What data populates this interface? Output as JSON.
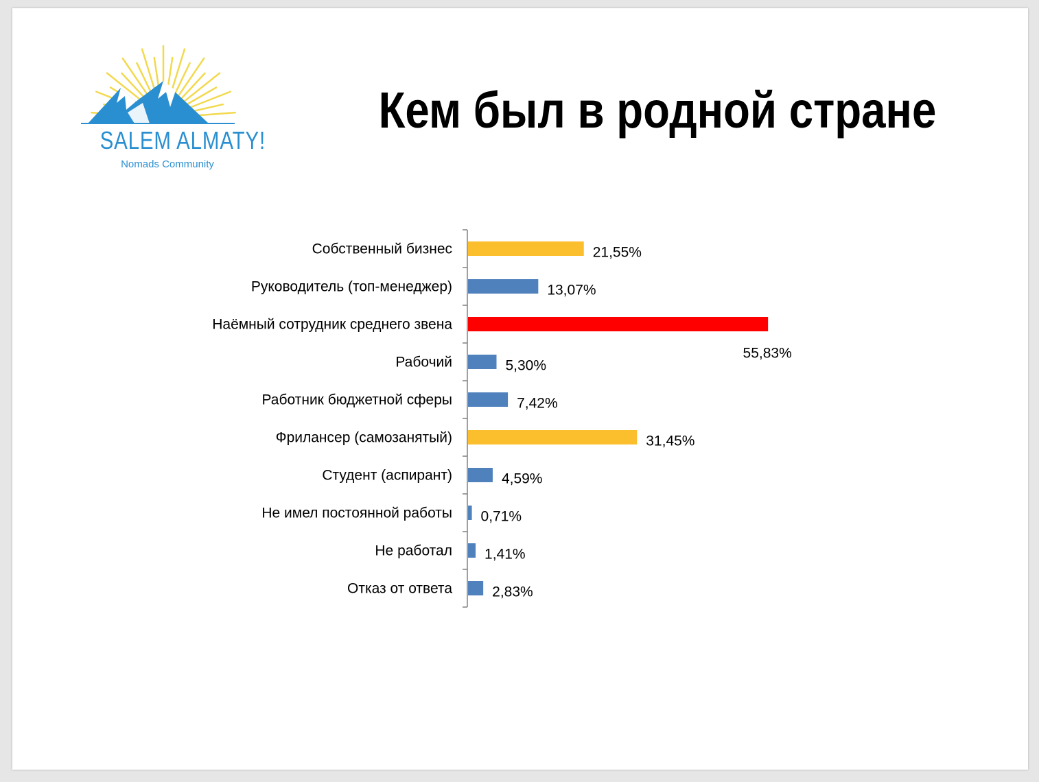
{
  "slide": {
    "title": "Кем был в родной стране"
  },
  "logo": {
    "brand": "SALEM ALMATY!",
    "tagline": "Nomads Community",
    "sun_color": "#f2d94e",
    "mountain_color": "#2a8fd0"
  },
  "colors": {
    "highlight_red": "#ff0000",
    "highlight_yellow": "#fbbf2e",
    "default_blue": "#4f81bd",
    "axis": "#808080"
  },
  "chart_data": {
    "type": "bar",
    "orientation": "horizontal",
    "title": "",
    "xlabel": "",
    "ylabel": "",
    "xlim": [
      0,
      60
    ],
    "grid": false,
    "legend": "none",
    "categories": [
      "Собственный бизнес",
      "Руководитель (топ-менеджер)",
      "Наёмный сотрудник среднего звена",
      "Рабочий",
      "Работник бюджетной сферы",
      "Фрилансер (самозанятый)",
      "Студент (аспирант)",
      "Не имел постоянной работы",
      "Не работал",
      "Отказ от ответа"
    ],
    "values": [
      21.55,
      13.07,
      55.83,
      5.3,
      7.42,
      31.45,
      4.59,
      0.71,
      1.41,
      2.83
    ],
    "data_labels": [
      "21,55%",
      "13,07%",
      "55,83%",
      "5,30%",
      "7,42%",
      "31,45%",
      "4,59%",
      "0,71%",
      "1,41%",
      "2,83%"
    ],
    "bar_colors": [
      "#fbbf2e",
      "#4f81bd",
      "#ff0000",
      "#4f81bd",
      "#4f81bd",
      "#fbbf2e",
      "#4f81bd",
      "#4f81bd",
      "#4f81bd",
      "#4f81bd"
    ]
  }
}
